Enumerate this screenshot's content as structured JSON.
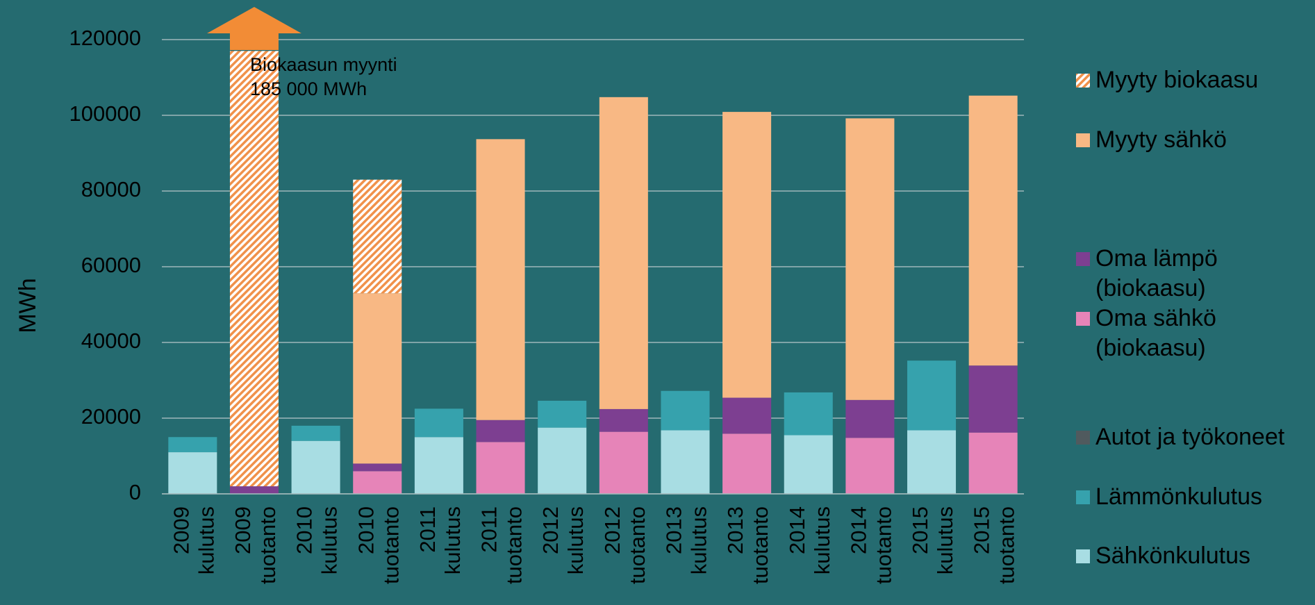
{
  "chart_data": {
    "type": "stacked_bar",
    "y_label": "MWh",
    "categories": [
      "2009 kulutus",
      "2009 tuotanto",
      "2010 kulutus",
      "2010 tuotanto",
      "2011 kulutus",
      "2011 tuotanto",
      "2012 kulutus",
      "2012 tuotanto",
      "2013 kulutus",
      "2013 tuotanto",
      "2014 kulutus",
      "2014 tuotanto",
      "2015 kulutus",
      "2015 tuotanto"
    ],
    "series": [
      {
        "name": "Sähkönkulutus",
        "color": "#a8dde3",
        "values": [
          11000,
          null,
          14000,
          null,
          15000,
          null,
          17500,
          null,
          16800,
          null,
          15500,
          null,
          16800,
          null
        ]
      },
      {
        "name": "Lämmönkulutus",
        "color": "#36a2ad",
        "values": [
          4000,
          null,
          4000,
          null,
          7500,
          null,
          7100,
          null,
          10400,
          null,
          11300,
          null,
          18400,
          null
        ]
      },
      {
        "name": "Autot ja työkoneet",
        "color": "#505a5e",
        "values": [
          0,
          0,
          0,
          0,
          0,
          0,
          0,
          0,
          0,
          0,
          0,
          0,
          0,
          0
        ]
      },
      {
        "name": "Oma sähkö (biokaasu)",
        "color": "#e684b8",
        "values": [
          null,
          0,
          null,
          6000,
          null,
          13700,
          null,
          16400,
          null,
          15900,
          null,
          14800,
          null,
          16200
        ]
      },
      {
        "name": "Oma lämpö (biokaasu)",
        "color": "#7d3f91",
        "values": [
          null,
          2000,
          null,
          2000,
          null,
          5800,
          null,
          6000,
          null,
          9500,
          null,
          10000,
          null,
          17700
        ]
      },
      {
        "name": "Myyty sähkö",
        "color": "#f8b884",
        "values": [
          null,
          null,
          null,
          45000,
          null,
          74200,
          null,
          82400,
          null,
          75500,
          null,
          74400,
          null,
          71300
        ]
      },
      {
        "name": "Myyty biokaasu",
        "color": "#f0914a",
        "hatch": true,
        "values": [
          null,
          115000,
          null,
          30000,
          null,
          null,
          null,
          null,
          null,
          null,
          null,
          null,
          null,
          null
        ]
      }
    ],
    "annotation": [
      "Biokaasun myynti",
      "185 000 MWh"
    ],
    "ylim": [
      0,
      120000
    ],
    "yticks": [
      0,
      20000,
      40000,
      60000,
      80000,
      100000,
      120000
    ],
    "grid": true,
    "legend": "right"
  }
}
